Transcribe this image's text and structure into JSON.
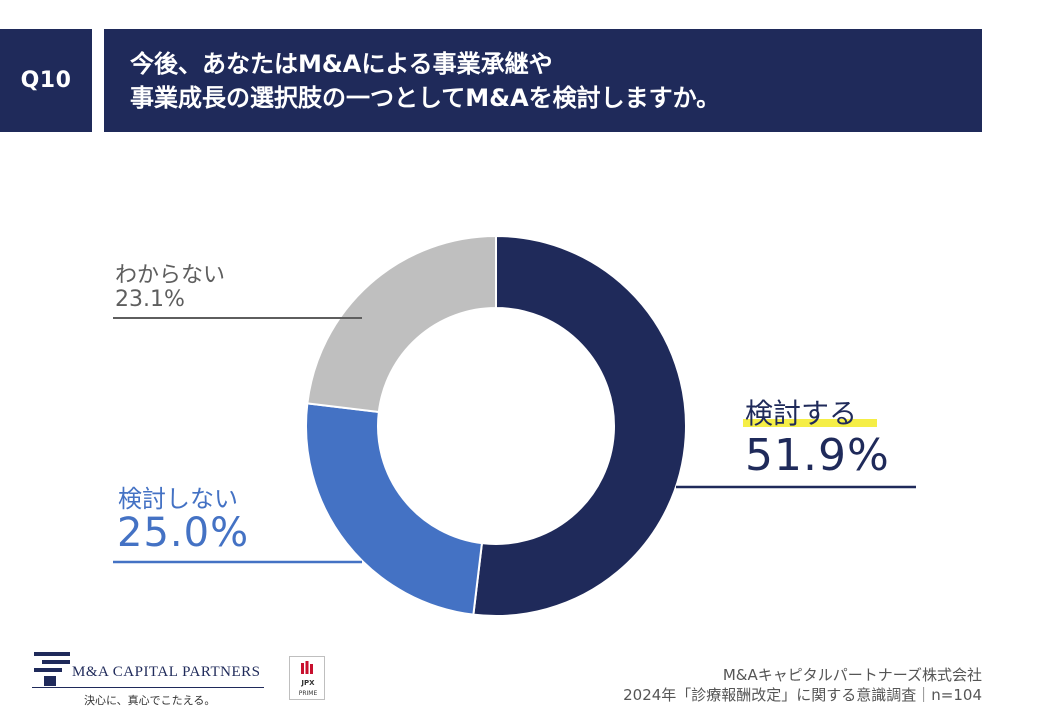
{
  "header": {
    "question_no": "Q10",
    "title_line1": "今後、あなたはM&Aによる事業承継や",
    "title_line2": "事業成長の選択肢の一つとしてM&Aを検討しますか。"
  },
  "chart_data": {
    "type": "pie",
    "donut": true,
    "slices": [
      {
        "label": "検討する",
        "value": 51.9,
        "value_label": "51.9%",
        "color": "#1f2a5a"
      },
      {
        "label": "検討しない",
        "value": 25.0,
        "value_label": "25.0%",
        "color": "#4472c4"
      },
      {
        "label": "わからない",
        "value": 23.1,
        "value_label": "23.1%",
        "color": "#bfbfbf"
      }
    ]
  },
  "footer": {
    "logo_name": "M&A CAPITAL PARTNERS",
    "logo_tagline": "決心に、真心でこたえる。",
    "jpx_top": "JPX",
    "jpx_bottom": "PRIME",
    "company": "M&Aキャピタルパートナーズ株式会社",
    "survey": "2024年「診療報酬改定」に関する意識調査｜n=104"
  },
  "colors": {
    "navy": "#1f2a5a",
    "blue": "#4472c4",
    "gray": "#bfbfbf",
    "highlight": "#f5ee46"
  }
}
